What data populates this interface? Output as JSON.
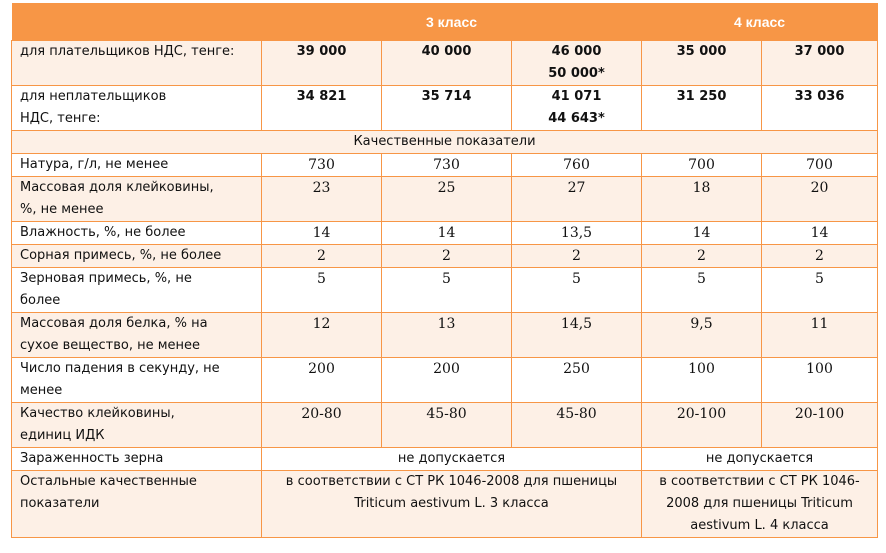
{
  "header": {
    "class3": "3 класс",
    "class4": "4 класс"
  },
  "price_rows": [
    {
      "label": "для плательщиков НДС, тенге:",
      "values": [
        "39 000",
        "40 000",
        "46 000",
        "35 000",
        "37 000"
      ],
      "extra": "50 000*"
    },
    {
      "label_line1": "для неплательщиков",
      "label_line2": "НДС, тенге:",
      "values": [
        "34 821",
        "35 714",
        "41 071",
        "31 250",
        "33 036"
      ],
      "extra": "44 643*"
    }
  ],
  "section_title": "Качественные показатели",
  "quality_rows": [
    {
      "label_line1": "Натура, г/л, не менее",
      "label_line2": "",
      "values": [
        "730",
        "730",
        "760",
        "700",
        "700"
      ]
    },
    {
      "label_line1": "Массовая доля клейковины,",
      "label_line2": "%, не менее",
      "values": [
        "23",
        "25",
        "27",
        "18",
        "20"
      ]
    },
    {
      "label_line1": "Влажность, %, не более",
      "label_line2": "",
      "values": [
        "14",
        "14",
        "13,5",
        "14",
        "14"
      ]
    },
    {
      "label_line1": "Сорная примесь, %, не более",
      "label_line2": "",
      "values": [
        "2",
        "2",
        "2",
        "2",
        "2"
      ]
    },
    {
      "label_line1": "Зерновая примесь, %, не",
      "label_line2": "более",
      "values": [
        "5",
        "5",
        "5",
        "5",
        "5"
      ]
    },
    {
      "label_line1": "Массовая доля белка, % на",
      "label_line2": "сухое вещество, не менее",
      "values": [
        "12",
        "13",
        "14,5",
        "9,5",
        "11"
      ]
    },
    {
      "label_line1": "Число падения в секунду, не",
      "label_line2": "менее",
      "values": [
        "200",
        "200",
        "250",
        "100",
        "100"
      ]
    },
    {
      "label_line1": "Качество клейковины,",
      "label_line2": "единиц ИДК",
      "values": [
        "20-80",
        "45-80",
        "45-80",
        "20-100",
        "20-100"
      ]
    }
  ],
  "infestation": {
    "label": "Зараженность зерна",
    "class3": "не допускается",
    "class4": "не допускается"
  },
  "other": {
    "label_line1": "Остальные качественные",
    "label_line2": "показатели",
    "class3_line1": "в соответствии с СТ РК 1046-2008 для пшеницы",
    "class3_line2": "Triticum aestivum L. 3 класса",
    "class4_line1": "в соответствии с СТ РК 1046-",
    "class4_line2": "2008 для пшеницы Triticum",
    "class4_line3": "aestivum L. 4 класса"
  },
  "colors": {
    "accent": "#f79646",
    "band": "#fdf0e6"
  }
}
